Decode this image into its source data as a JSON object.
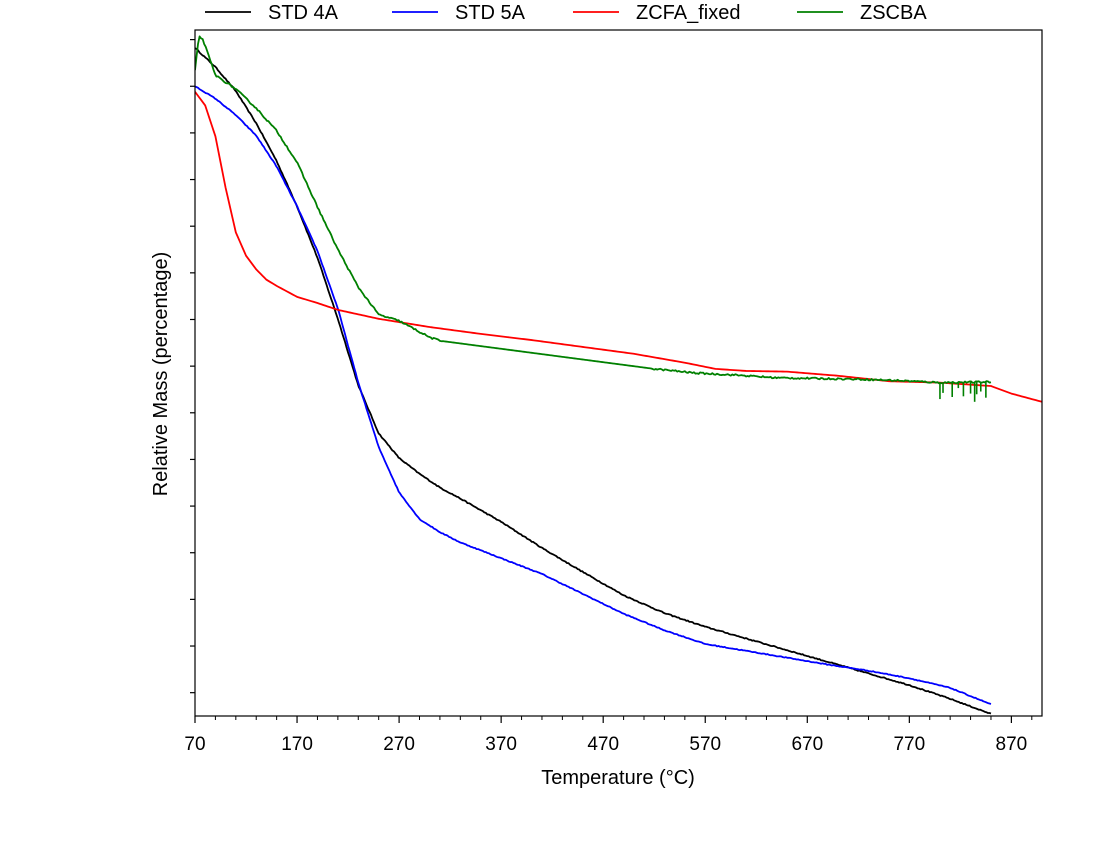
{
  "chart_data": {
    "type": "line",
    "xlabel": "Temperature (°C)",
    "ylabel": "Relative Mass (percentage)",
    "xlim": [
      70,
      900
    ],
    "ylim": [
      0,
      100
    ],
    "x_ticks": [
      70,
      170,
      270,
      370,
      470,
      570,
      670,
      770,
      870
    ],
    "x_minor_step": 20,
    "y_tick_values": [
      3.4,
      10.2,
      17.0,
      23.8,
      30.6,
      37.4,
      44.2,
      51.0,
      57.8,
      64.6,
      71.4,
      78.2,
      85.0,
      91.8,
      98.6
    ],
    "y_tick_labels_shown": false,
    "grid": false,
    "legend_position": "top",
    "series": [
      {
        "name": "STD 4A",
        "color": "#000000",
        "noise": 0.15,
        "x": [
          70,
          90,
          110,
          130,
          150,
          170,
          190,
          210,
          230,
          250,
          270,
          290,
          310,
          330,
          370,
          410,
          450,
          490,
          530,
          570,
          610,
          650,
          690,
          730,
          770,
          810,
          850
        ],
        "y": [
          97.4,
          94.6,
          91.1,
          86.4,
          80.9,
          74.3,
          66.8,
          57.9,
          48.2,
          41.2,
          37.6,
          35.3,
          33.3,
          31.7,
          28.3,
          24.5,
          21.0,
          17.6,
          15.0,
          13.0,
          11.3,
          9.6,
          7.9,
          6.2,
          4.5,
          2.5,
          0.3
        ]
      },
      {
        "name": "STD 5A",
        "color": "#0000ff",
        "noise": 0.12,
        "x": [
          70,
          90,
          110,
          130,
          150,
          170,
          190,
          210,
          230,
          250,
          270,
          290,
          310,
          330,
          370,
          410,
          450,
          490,
          530,
          570,
          610,
          650,
          690,
          730,
          770,
          810,
          850
        ],
        "y": [
          91.8,
          90.0,
          87.6,
          84.6,
          80.1,
          74.3,
          67.8,
          59.4,
          48.6,
          39.2,
          32.6,
          28.7,
          26.8,
          25.3,
          23.0,
          20.7,
          17.8,
          14.9,
          12.5,
          10.5,
          9.5,
          8.5,
          7.5,
          6.6,
          5.5,
          4.1,
          1.7
        ]
      },
      {
        "name": "ZCFA_fixed",
        "color": "#ff0000",
        "noise": 0,
        "x": [
          70,
          80,
          90,
          100,
          110,
          120,
          130,
          140,
          150,
          170,
          190,
          210,
          250,
          300,
          350,
          400,
          450,
          500,
          550,
          580,
          610,
          650,
          700,
          750,
          800,
          850,
          870,
          900
        ],
        "y": [
          91.0,
          89.0,
          84.5,
          77.0,
          70.5,
          67.1,
          65.1,
          63.6,
          62.7,
          61.1,
          60.2,
          59.2,
          57.9,
          56.7,
          55.7,
          54.8,
          53.8,
          52.8,
          51.5,
          50.6,
          50.3,
          50.2,
          49.6,
          48.8,
          48.6,
          48.1,
          47.0,
          45.8
        ]
      },
      {
        "name": "ZSCBA",
        "color": "#008000",
        "noise": 0.25,
        "x": [
          70,
          74,
          78,
          90,
          110,
          130,
          150,
          170,
          190,
          210,
          230,
          250,
          270,
          290,
          300,
          310,
          520,
          560,
          600,
          640,
          680,
          720,
          760,
          800,
          850
        ],
        "y": [
          94.1,
          99.2,
          98.5,
          93.4,
          91.4,
          88.6,
          85.3,
          80.7,
          74.2,
          68.0,
          62.5,
          58.5,
          57.6,
          56.0,
          55.2,
          54.7,
          50.6,
          50.0,
          49.7,
          49.3,
          49.2,
          49.1,
          48.9,
          48.6,
          48.7
        ]
      }
    ],
    "dips": {
      "series": "ZSCBA",
      "x": [
        800,
        803,
        812,
        818,
        823,
        830,
        834,
        836,
        840,
        845
      ],
      "y": [
        46.2,
        47.1,
        46.5,
        47.8,
        46.6,
        47.0,
        45.8,
        46.9,
        47.3,
        46.4
      ]
    }
  }
}
